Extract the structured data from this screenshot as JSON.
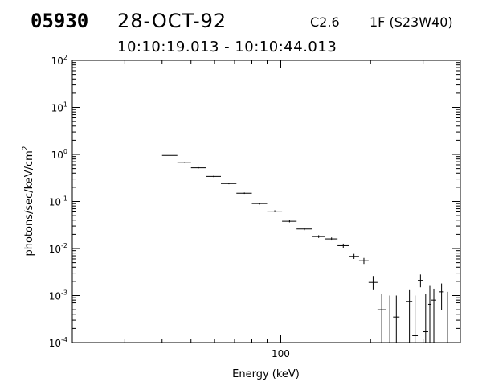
{
  "header": {
    "event_id": "05930",
    "date": "28-OCT-92",
    "flare_class": "C2.6",
    "flare_location": "1F (S23W40)",
    "time_range": "10:10:19.013 - 10:10:44.013"
  },
  "chart_data": {
    "type": "scatter",
    "title": "",
    "xlabel": "Energy (keV)",
    "ylabel": "photons/sec/keV/cm",
    "ylabel_sup": "2",
    "xscale": "log",
    "yscale": "log",
    "xlim": [
      20,
      400
    ],
    "ylim": [
      0.0001,
      100
    ],
    "x_tick_labels": [
      "100"
    ],
    "y_tick_labels": [
      {
        "base": "10",
        "exp": "-4"
      },
      {
        "base": "10",
        "exp": "-3"
      },
      {
        "base": "10",
        "exp": "-2"
      },
      {
        "base": "10",
        "exp": "-1"
      },
      {
        "base": "10",
        "exp": "0"
      },
      {
        "base": "10",
        "exp": "1"
      },
      {
        "base": "10",
        "exp": "2"
      }
    ],
    "grid": false,
    "series": [
      {
        "points": [
          {
            "x": 42.5,
            "x_lo": 40,
            "x_hi": 45,
            "y": 0.95,
            "y_lo": 0.93,
            "y_hi": 0.97
          },
          {
            "x": 47.5,
            "x_lo": 45,
            "x_hi": 50,
            "y": 0.68,
            "y_lo": 0.665,
            "y_hi": 0.695
          },
          {
            "x": 53,
            "x_lo": 50,
            "x_hi": 56,
            "y": 0.52,
            "y_lo": 0.505,
            "y_hi": 0.535
          },
          {
            "x": 59.5,
            "x_lo": 56,
            "x_hi": 63,
            "y": 0.34,
            "y_lo": 0.33,
            "y_hi": 0.35
          },
          {
            "x": 67,
            "x_lo": 63,
            "x_hi": 71,
            "y": 0.24,
            "y_lo": 0.232,
            "y_hi": 0.248
          },
          {
            "x": 75.5,
            "x_lo": 71,
            "x_hi": 80,
            "y": 0.15,
            "y_lo": 0.145,
            "y_hi": 0.155
          },
          {
            "x": 85,
            "x_lo": 80,
            "x_hi": 90,
            "y": 0.09,
            "y_lo": 0.086,
            "y_hi": 0.094
          },
          {
            "x": 95.5,
            "x_lo": 90,
            "x_hi": 101,
            "y": 0.062,
            "y_lo": 0.059,
            "y_hi": 0.065
          },
          {
            "x": 107,
            "x_lo": 101,
            "x_hi": 113,
            "y": 0.038,
            "y_lo": 0.036,
            "y_hi": 0.04
          },
          {
            "x": 120,
            "x_lo": 113,
            "x_hi": 127,
            "y": 0.026,
            "y_lo": 0.0245,
            "y_hi": 0.0275
          },
          {
            "x": 134,
            "x_lo": 127,
            "x_hi": 141,
            "y": 0.018,
            "y_lo": 0.0168,
            "y_hi": 0.0192
          },
          {
            "x": 148,
            "x_lo": 141,
            "x_hi": 155,
            "y": 0.016,
            "y_lo": 0.0148,
            "y_hi": 0.0172
          },
          {
            "x": 162,
            "x_lo": 155,
            "x_hi": 169,
            "y": 0.0115,
            "y_lo": 0.0103,
            "y_hi": 0.0127
          },
          {
            "x": 176,
            "x_lo": 169,
            "x_hi": 183,
            "y": 0.0068,
            "y_lo": 0.006,
            "y_hi": 0.0077
          },
          {
            "x": 190,
            "x_lo": 183,
            "x_hi": 197,
            "y": 0.0055,
            "y_lo": 0.0047,
            "y_hi": 0.0063
          },
          {
            "x": 204,
            "x_lo": 197,
            "x_hi": 211,
            "y": 0.0019,
            "y_lo": 0.0013,
            "y_hi": 0.0026
          },
          {
            "x": 218,
            "x_lo": 211,
            "x_hi": 225,
            "y": 0.0005,
            "y_lo": 0.0001,
            "y_hi": 0.0011
          },
          {
            "x": 232,
            "x_lo": 226,
            "x_hi": 238,
            "y": null,
            "y_lo": 0.0001,
            "y_hi": 0.001
          },
          {
            "x": 244,
            "x_lo": 238,
            "x_hi": 250,
            "y": 0.00035,
            "y_lo": 0.0001,
            "y_hi": 0.001
          },
          {
            "x": 270,
            "x_lo": 264,
            "x_hi": 276,
            "y": 0.00075,
            "y_lo": 0.0001,
            "y_hi": 0.0013
          },
          {
            "x": 282,
            "x_lo": 276,
            "x_hi": 288,
            "y": 0.00014,
            "y_lo": 0.0001,
            "y_hi": 0.001
          },
          {
            "x": 294,
            "x_lo": 288,
            "x_hi": 300,
            "y": 0.0021,
            "y_lo": 0.0015,
            "y_hi": 0.0028
          },
          {
            "x": 306,
            "x_lo": 300,
            "x_hi": 312,
            "y": 0.00017,
            "y_lo": 0.0001,
            "y_hi": 0.0011
          },
          {
            "x": 316,
            "x_lo": 312,
            "x_hi": 320,
            "y": 0.00065,
            "y_lo": 0.0001,
            "y_hi": 0.0016
          },
          {
            "x": 326,
            "x_lo": 320,
            "x_hi": 332,
            "y": 0.0008,
            "y_lo": 0.0001,
            "y_hi": 0.0014
          },
          {
            "x": 346,
            "x_lo": 340,
            "x_hi": 352,
            "y": 0.0012,
            "y_lo": 0.0005,
            "y_hi": 0.0018
          },
          {
            "x": 362,
            "x_lo": 356,
            "x_hi": 368,
            "y": null,
            "y_lo": 0.0001,
            "y_hi": 0.0012
          }
        ]
      }
    ]
  }
}
